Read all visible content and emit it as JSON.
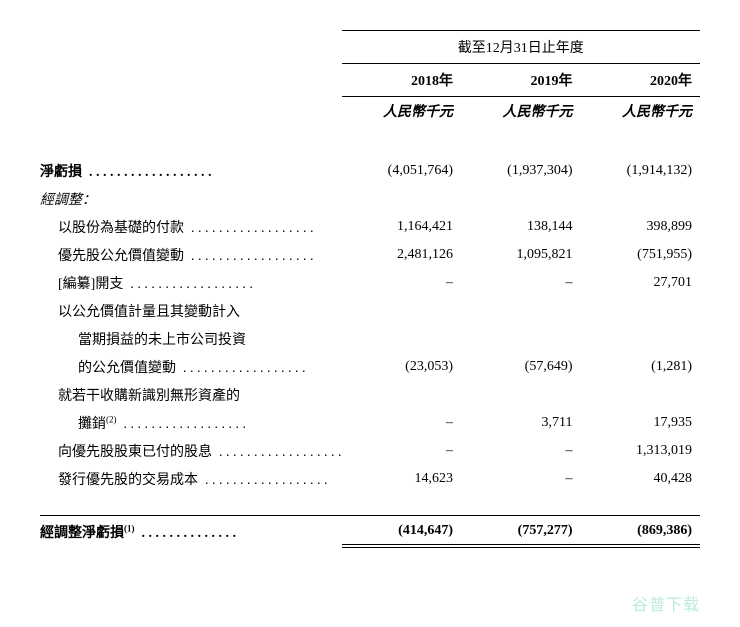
{
  "meta": {
    "background_color": "#ffffff",
    "text_color": "#000000",
    "border_color": "#000000",
    "font_family": "Microsoft YaHei, SimSun, serif",
    "base_font_size": 14,
    "watermark_color": "#8de0c3"
  },
  "header": {
    "span_title": "截至12月31日止年度",
    "years": [
      "2018年",
      "2019年",
      "2020年"
    ],
    "unit": "人民幣千元"
  },
  "rows": [
    {
      "label": "淨虧損",
      "bold": true,
      "dots": true,
      "values": [
        "(4,051,764)",
        "(1,937,304)",
        "(1,914,132)"
      ]
    },
    {
      "label": "經調整：",
      "bold": false,
      "italic_label": true,
      "dots": false,
      "values": [
        "",
        "",
        ""
      ]
    },
    {
      "label": "以股份為基礎的付款",
      "indent": 1,
      "dots": true,
      "values": [
        "1,164,421",
        "138,144",
        "398,899"
      ]
    },
    {
      "label": "優先股公允價值變動",
      "indent": 1,
      "dots": true,
      "values": [
        "2,481,126",
        "1,095,821",
        "(751,955)"
      ]
    },
    {
      "label": "[編纂]開支",
      "indent": 1,
      "dots": true,
      "values": [
        "–",
        "–",
        "27,701"
      ]
    },
    {
      "label": "以公允價值計量且其變動計入",
      "indent": 1,
      "dots": false,
      "values": [
        "",
        "",
        ""
      ]
    },
    {
      "label": "當期損益的未上市公司投資",
      "indent": 2,
      "dots": false,
      "values": [
        "",
        "",
        ""
      ]
    },
    {
      "label": "的公允價值變動",
      "indent": 2,
      "dots": true,
      "values": [
        "(23,053)",
        "(57,649)",
        "(1,281)"
      ]
    },
    {
      "label": "就若干收購新識別無形資產的",
      "indent": 1,
      "dots": false,
      "values": [
        "",
        "",
        ""
      ]
    },
    {
      "labelHtml": "攤銷<span class=\"sup\">(2)</span>",
      "label": "攤銷(2)",
      "indent": 2,
      "dots": true,
      "values": [
        "–",
        "3,711",
        "17,935"
      ]
    },
    {
      "label": "向優先股股東已付的股息",
      "indent": 1,
      "dots": true,
      "values": [
        "–",
        "–",
        "1,313,019"
      ]
    },
    {
      "label": "發行優先股的交易成本",
      "indent": 1,
      "dots": true,
      "values": [
        "14,623",
        "–",
        "40,428"
      ]
    }
  ],
  "total": {
    "labelHtml": "經調整淨虧損<span class=\"sup\">(1)</span>",
    "label": "經調整淨虧損(1)",
    "dots": true,
    "values": [
      "(414,647)",
      "(757,277)",
      "(869,386)"
    ]
  },
  "watermark": "谷普下载"
}
